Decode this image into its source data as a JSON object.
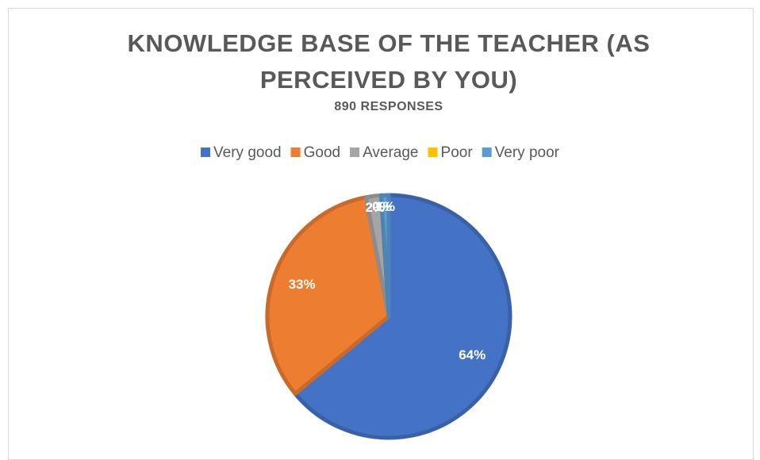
{
  "chart_data": {
    "type": "pie",
    "title": "KNOWLEDGE BASE OF THE TEACHER (AS PERCEIVED BY YOU)",
    "subtitle": "890 RESPONSES",
    "categories": [
      "Very good",
      "Good",
      "Average",
      "Poor",
      "Very poor"
    ],
    "values": [
      64,
      33,
      2,
      0,
      1
    ],
    "value_labels": [
      "64%",
      "33%",
      "2%",
      "0%",
      "1%"
    ],
    "colors": [
      "#4472c4",
      "#ed7d31",
      "#a5a5a5",
      "#ffc000",
      "#5b9bd5"
    ],
    "legend": "top"
  }
}
